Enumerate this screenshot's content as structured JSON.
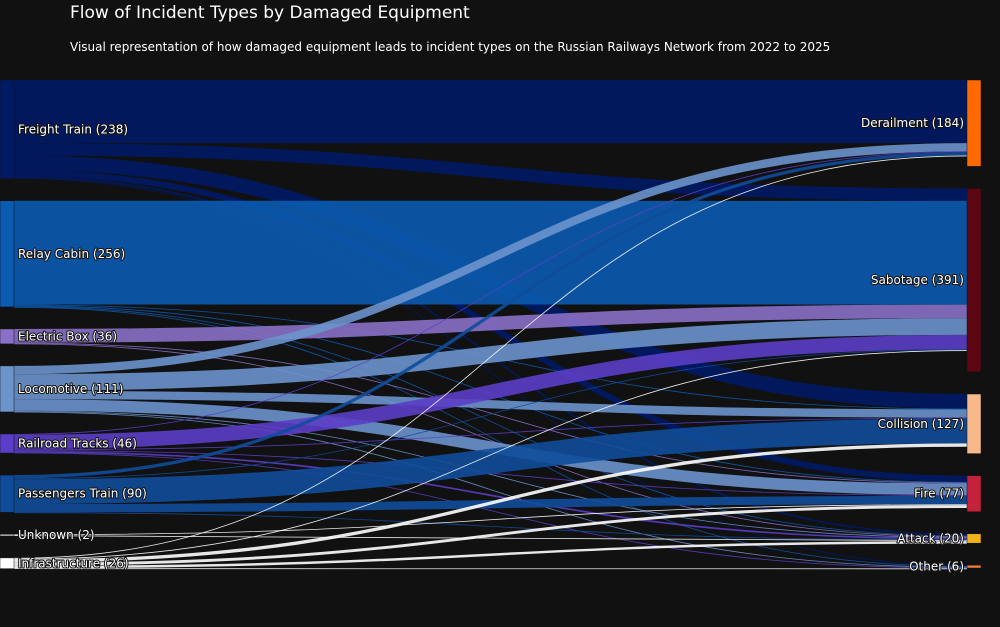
{
  "chart_data": {
    "type": "sankey",
    "title": "Flow of Incident Types by Damaged Equipment",
    "subtitle": "Visual representation of how damaged equipment leads to incident types on the Russian Railways Network from 2022 to 2025",
    "sources": [
      {
        "id": "freight",
        "label": "Freight Train (238)",
        "value": 238,
        "color": "#001a66"
      },
      {
        "id": "relay",
        "label": "Relay Cabin (256)",
        "value": 256,
        "color": "#0b5bb0"
      },
      {
        "id": "electric",
        "label": "Electric Box (36)",
        "value": 36,
        "color": "#8a70c6"
      },
      {
        "id": "loco",
        "label": "Locomotive (111)",
        "value": 111,
        "color": "#6c94cc"
      },
      {
        "id": "tracks",
        "label": "Railroad Tracks (46)",
        "value": 46,
        "color": "#5b3ec7"
      },
      {
        "id": "passenger",
        "label": "Passengers Train (90)",
        "value": 90,
        "color": "#0f4c9a"
      },
      {
        "id": "unknown",
        "label": "Unknown (2)",
        "value": 2,
        "color": "#ffffff"
      },
      {
        "id": "infra",
        "label": "Infrastructure (26)",
        "value": 26,
        "color": "#ffffff"
      }
    ],
    "targets": [
      {
        "id": "derail",
        "label": "Derailment (184)",
        "value": 184,
        "color": "#ff6a00"
      },
      {
        "id": "sabotage",
        "label": "Sabotage (391)",
        "value": 391,
        "color": "#5c0612"
      },
      {
        "id": "collision",
        "label": "Collision (127)",
        "value": 127,
        "color": "#f7b98a"
      },
      {
        "id": "fire",
        "label": "Fire (77)",
        "value": 77,
        "color": "#c4213a"
      },
      {
        "id": "attack",
        "label": "Attack (20)",
        "value": 20,
        "color": "#f2b21b"
      },
      {
        "id": "other",
        "label": "Other (6)",
        "value": 6,
        "color": "#f07d3a"
      }
    ],
    "links": [
      {
        "source": "freight",
        "target": "derail",
        "value": 152
      },
      {
        "source": "freight",
        "target": "sabotage",
        "value": 30
      },
      {
        "source": "freight",
        "target": "collision",
        "value": 35
      },
      {
        "source": "freight",
        "target": "fire",
        "value": 15
      },
      {
        "source": "freight",
        "target": "attack",
        "value": 4
      },
      {
        "source": "freight",
        "target": "other",
        "value": 2
      },
      {
        "source": "relay",
        "target": "sabotage",
        "value": 250
      },
      {
        "source": "relay",
        "target": "collision",
        "value": 2
      },
      {
        "source": "relay",
        "target": "fire",
        "value": 2
      },
      {
        "source": "relay",
        "target": "attack",
        "value": 1
      },
      {
        "source": "relay",
        "target": "other",
        "value": 1
      },
      {
        "source": "electric",
        "target": "sabotage",
        "value": 33
      },
      {
        "source": "electric",
        "target": "fire",
        "value": 2
      },
      {
        "source": "electric",
        "target": "attack",
        "value": 1
      },
      {
        "source": "loco",
        "target": "derail",
        "value": 20
      },
      {
        "source": "loco",
        "target": "sabotage",
        "value": 40
      },
      {
        "source": "loco",
        "target": "collision",
        "value": 20
      },
      {
        "source": "loco",
        "target": "fire",
        "value": 28
      },
      {
        "source": "loco",
        "target": "attack",
        "value": 2
      },
      {
        "source": "loco",
        "target": "other",
        "value": 1
      },
      {
        "source": "tracks",
        "target": "derail",
        "value": 2
      },
      {
        "source": "tracks",
        "target": "sabotage",
        "value": 35
      },
      {
        "source": "tracks",
        "target": "collision",
        "value": 2
      },
      {
        "source": "tracks",
        "target": "fire",
        "value": 2
      },
      {
        "source": "tracks",
        "target": "attack",
        "value": 4
      },
      {
        "source": "tracks",
        "target": "other",
        "value": 1
      },
      {
        "source": "passenger",
        "target": "derail",
        "value": 8
      },
      {
        "source": "passenger",
        "target": "sabotage",
        "value": 1
      },
      {
        "source": "passenger",
        "target": "collision",
        "value": 60
      },
      {
        "source": "passenger",
        "target": "fire",
        "value": 20
      },
      {
        "source": "passenger",
        "target": "attack",
        "value": 1
      },
      {
        "source": "unknown",
        "target": "fire",
        "value": 1
      },
      {
        "source": "unknown",
        "target": "attack",
        "value": 1
      },
      {
        "source": "infra",
        "target": "derail",
        "value": 2
      },
      {
        "source": "infra",
        "target": "sabotage",
        "value": 2
      },
      {
        "source": "infra",
        "target": "collision",
        "value": 8
      },
      {
        "source": "infra",
        "target": "fire",
        "value": 7
      },
      {
        "source": "infra",
        "target": "attack",
        "value": 6
      },
      {
        "source": "infra",
        "target": "other",
        "value": 1
      }
    ]
  }
}
